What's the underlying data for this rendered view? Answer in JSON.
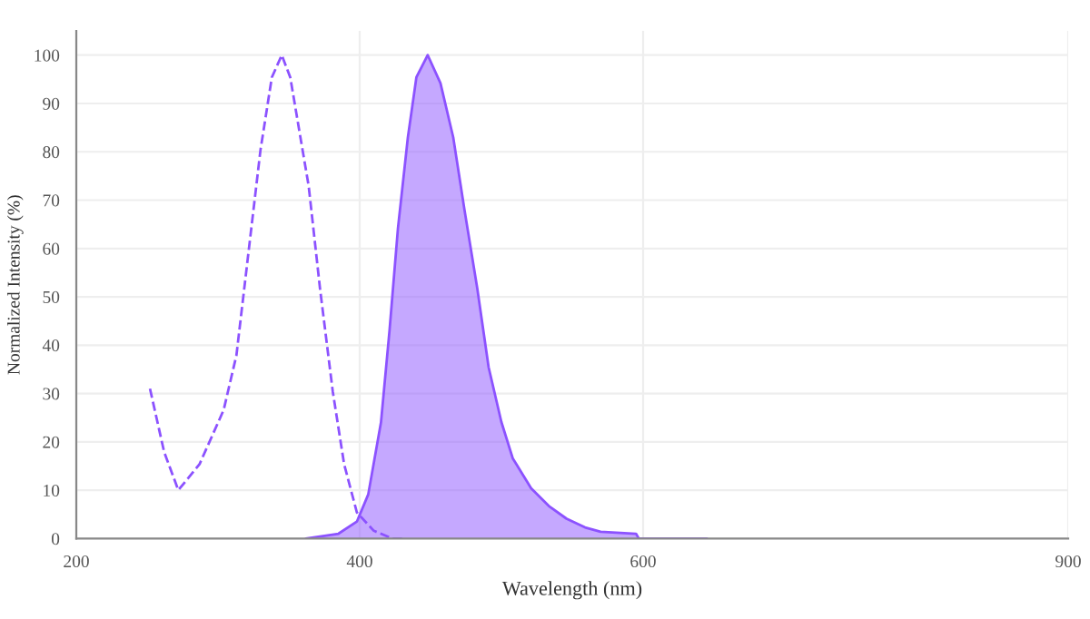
{
  "chart_data": {
    "type": "line",
    "xlabel": "Wavelength (nm)",
    "ylabel": "Normalized Intensity (%)",
    "xlim": [
      200,
      900
    ],
    "ylim": [
      0,
      105
    ],
    "xticks": [
      200,
      400,
      600,
      900
    ],
    "yticks": [
      0,
      10,
      20,
      30,
      40,
      50,
      60,
      70,
      80,
      90,
      100
    ],
    "grid": true,
    "legend": false,
    "series": [
      {
        "line_style": "dashed",
        "color": "#8c52ff",
        "x": [
          252,
          262,
          272,
          287,
          304,
          313,
          321,
          330,
          338,
          345,
          351,
          364,
          372,
          381,
          389,
          398,
          410,
          423,
          432
        ],
        "values": [
          31,
          17.9,
          10,
          15.4,
          26.6,
          37.9,
          57.9,
          80.4,
          95.4,
          100,
          95.4,
          72.9,
          51.7,
          30.4,
          15.4,
          5.4,
          1.6,
          0,
          0
        ]
      },
      {
        "type": "area",
        "line_style": "solid",
        "color": "#8c52ff",
        "x": [
          362,
          385,
          398,
          406,
          415,
          421,
          427,
          434,
          440,
          448,
          457,
          466,
          474,
          483,
          491,
          500,
          508,
          521,
          534,
          546,
          559,
          570,
          595,
          597,
          645
        ],
        "values": [
          0,
          1,
          3.5,
          9.1,
          24,
          42.9,
          64.2,
          83,
          95.4,
          100,
          94.2,
          83,
          67.9,
          51.7,
          35.4,
          24.1,
          16.6,
          10.4,
          6.6,
          4.1,
          2.3,
          1.4,
          1,
          0,
          0
        ]
      }
    ]
  }
}
